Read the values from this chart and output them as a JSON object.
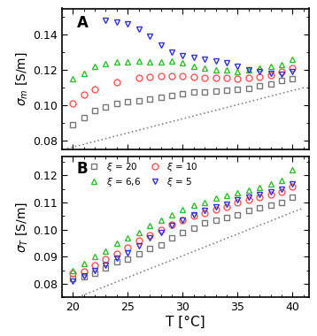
{
  "panel_A": {
    "xi20_sq": {
      "T": [
        20,
        21,
        22,
        23,
        24,
        25,
        26,
        27,
        28,
        29,
        30,
        31,
        32,
        33,
        34,
        35,
        36,
        37,
        38,
        39,
        40
      ],
      "sigma": [
        0.089,
        0.093,
        0.097,
        0.099,
        0.101,
        0.102,
        0.1025,
        0.1035,
        0.1045,
        0.1055,
        0.1065,
        0.1075,
        0.1075,
        0.108,
        0.1085,
        0.109,
        0.1095,
        0.111,
        0.112,
        0.114,
        0.115
      ],
      "color": "#777777",
      "marker": "s"
    },
    "xi10_circle": {
      "T": [
        20,
        21,
        22,
        24,
        26,
        27,
        28,
        29,
        30,
        31,
        32,
        33,
        34,
        35,
        36,
        37,
        38,
        39,
        40
      ],
      "sigma": [
        0.101,
        0.106,
        0.109,
        0.113,
        0.1155,
        0.116,
        0.1165,
        0.1165,
        0.1165,
        0.116,
        0.1155,
        0.1155,
        0.1155,
        0.115,
        0.1155,
        0.116,
        0.117,
        0.119,
        0.121
      ],
      "color": "#ff5555",
      "marker": "o"
    },
    "xi66_tri_up": {
      "T": [
        20,
        21,
        22,
        23,
        24,
        25,
        26,
        27,
        28,
        29,
        30,
        31,
        32,
        33,
        34,
        35,
        36,
        37,
        38,
        39,
        40
      ],
      "sigma": [
        0.115,
        0.118,
        0.122,
        0.1235,
        0.1245,
        0.1245,
        0.125,
        0.1245,
        0.1245,
        0.125,
        0.124,
        0.122,
        0.121,
        0.12,
        0.12,
        0.119,
        0.12,
        0.121,
        0.122,
        0.123,
        0.126
      ],
      "color": "#33bb33",
      "marker": "^"
    },
    "xi5_tri_down": {
      "T": [
        23,
        24,
        25,
        26,
        27,
        28,
        29,
        30,
        31,
        32,
        33,
        34,
        35,
        36,
        37,
        38,
        39,
        40
      ],
      "sigma": [
        0.148,
        0.147,
        0.146,
        0.143,
        0.139,
        0.134,
        0.13,
        0.128,
        0.127,
        0.126,
        0.125,
        0.124,
        0.122,
        0.12,
        0.119,
        0.118,
        0.1175,
        0.119
      ],
      "color": "#3333cc",
      "marker": "v"
    },
    "dashed_T": [
      19.5,
      41
    ],
    "dashed_sigma": [
      0.0755,
      0.11
    ]
  },
  "panel_B": {
    "xi20_sq": {
      "T": [
        20,
        21,
        22,
        23,
        24,
        25,
        26,
        27,
        28,
        29,
        30,
        31,
        32,
        33,
        34,
        35,
        36,
        37,
        38,
        39,
        40
      ],
      "sigma": [
        0.082,
        0.0825,
        0.084,
        0.086,
        0.088,
        0.089,
        0.091,
        0.093,
        0.0945,
        0.097,
        0.099,
        0.1005,
        0.1025,
        0.1035,
        0.1045,
        0.1055,
        0.107,
        0.108,
        0.109,
        0.11,
        0.112
      ],
      "color": "#777777",
      "marker": "s"
    },
    "xi10_circle": {
      "T": [
        20,
        21,
        22,
        23,
        24,
        25,
        26,
        27,
        28,
        29,
        30,
        31,
        32,
        33,
        34,
        35,
        36,
        37,
        38,
        39,
        40
      ],
      "sigma": [
        0.084,
        0.0845,
        0.087,
        0.089,
        0.091,
        0.0935,
        0.096,
        0.098,
        0.1,
        0.102,
        0.1035,
        0.105,
        0.106,
        0.1075,
        0.1085,
        0.11,
        0.111,
        0.112,
        0.113,
        0.114,
        0.116
      ],
      "color": "#ff5555",
      "marker": "o"
    },
    "xi66_tri_up": {
      "T": [
        20,
        21,
        22,
        23,
        24,
        25,
        26,
        27,
        28,
        29,
        30,
        31,
        32,
        33,
        34,
        35,
        36,
        37,
        38,
        39,
        40
      ],
      "sigma": [
        0.085,
        0.0875,
        0.09,
        0.092,
        0.095,
        0.097,
        0.099,
        0.1015,
        0.1035,
        0.1055,
        0.1075,
        0.109,
        0.11,
        0.1115,
        0.1125,
        0.1135,
        0.1145,
        0.1155,
        0.117,
        0.118,
        0.122
      ],
      "color": "#33bb33",
      "marker": "^"
    },
    "xi5_tri_down": {
      "T": [
        20,
        21,
        22,
        23,
        24,
        25,
        26,
        27,
        28,
        29,
        30,
        31,
        32,
        33,
        34,
        35,
        36,
        37,
        38,
        39,
        40
      ],
      "sigma": [
        0.081,
        0.083,
        0.085,
        0.087,
        0.0895,
        0.0915,
        0.094,
        0.097,
        0.099,
        0.1015,
        0.1035,
        0.1055,
        0.107,
        0.1085,
        0.1095,
        0.111,
        0.112,
        0.113,
        0.114,
        0.115,
        0.117
      ],
      "color": "#3333cc",
      "marker": "v"
    },
    "dashed_T": [
      19.5,
      41
    ],
    "dashed_sigma": [
      0.0735,
      0.108
    ]
  },
  "xlim": [
    19.0,
    41.5
  ],
  "ylim_A": [
    0.075,
    0.155
  ],
  "ylim_B": [
    0.075,
    0.127
  ],
  "yticks_A": [
    0.08,
    0.1,
    0.12,
    0.14
  ],
  "yticks_B": [
    0.08,
    0.09,
    0.1,
    0.11,
    0.12
  ],
  "xlabel": "T [°C]",
  "xticks": [
    20,
    25,
    30,
    35,
    40
  ],
  "markersize": 5.0,
  "mew": 1.0,
  "legend_fontsize": 7.5,
  "tick_fontsize": 9,
  "label_fontsize": 10,
  "dashed_color": "#888888"
}
